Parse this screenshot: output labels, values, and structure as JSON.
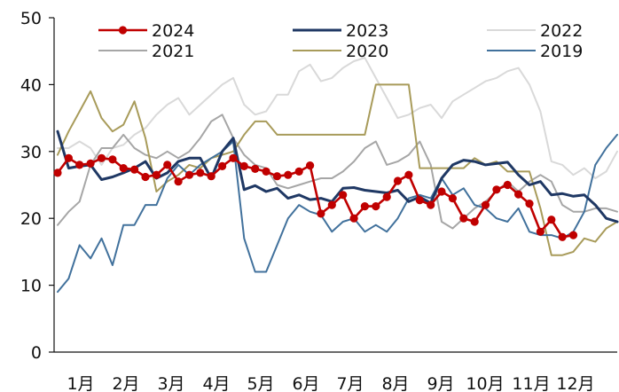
{
  "chart_data": {
    "type": "line",
    "title": "",
    "xlabel": "",
    "ylabel": "",
    "ylim": [
      0,
      50
    ],
    "yticks": [
      0,
      10,
      20,
      30,
      40,
      50
    ],
    "xlim": [
      0,
      51
    ],
    "x_tick_labels": [
      "1月",
      "2月",
      "3月",
      "4月",
      "5月",
      "6月",
      "7月",
      "8月",
      "9月",
      "10月",
      "11月",
      "12月"
    ],
    "grid": false,
    "legend_placement": "top, three columns",
    "series": [
      {
        "name": "2024",
        "color": "#C00000",
        "markers": true,
        "values": [
          26.8,
          29.0,
          28.0,
          28.2,
          29.0,
          28.8,
          27.5,
          27.3,
          26.2,
          26.5,
          28.0,
          25.5,
          26.5,
          26.8,
          26.3,
          27.8,
          29.0,
          27.8,
          27.4,
          27.0,
          26.3,
          26.5,
          27.0,
          27.9,
          20.7,
          22.0,
          23.5,
          20.0,
          21.8,
          21.8,
          23.2,
          25.6,
          26.5,
          22.7,
          22.0,
          24.0,
          23.0,
          20.0,
          19.5,
          22.0,
          24.3,
          25.0,
          23.6,
          22.2,
          18.0,
          19.8,
          17.2,
          17.5
        ],
        "points_x": [
          0,
          1,
          2,
          3,
          4,
          5,
          6,
          7,
          8,
          9,
          10,
          11,
          12,
          13,
          14,
          15,
          16,
          17,
          18,
          19,
          20,
          21,
          22,
          23,
          24,
          25,
          26,
          27,
          28,
          29,
          30,
          31,
          32,
          33,
          34,
          35,
          36,
          37,
          38,
          39,
          40,
          41,
          42,
          43,
          44,
          45,
          46,
          47
        ]
      },
      {
        "name": "2023",
        "color": "#1F3864",
        "markers": false,
        "values": [
          33.0,
          27.5,
          27.8,
          28.0,
          25.8,
          26.2,
          26.8,
          27.5,
          28.5,
          26.0,
          26.8,
          28.5,
          29.0,
          29.0,
          26.0,
          30.0,
          32.0,
          24.3,
          24.9,
          24.0,
          24.5,
          23.0,
          23.5,
          22.8,
          23.0,
          22.5,
          24.5,
          24.6,
          24.2,
          24.0,
          23.8,
          24.2,
          22.5,
          23.2,
          22.3,
          26.0,
          28.0,
          28.7,
          28.5,
          28.0,
          28.2,
          28.4,
          26.5,
          25.0,
          25.5,
          23.5,
          23.7,
          23.3,
          23.5,
          22.0,
          20.0,
          19.5
        ],
        "points_x": [
          0,
          1,
          2,
          3,
          4,
          5,
          6,
          7,
          8,
          9,
          10,
          11,
          12,
          13,
          14,
          15,
          16,
          17,
          18,
          19,
          20,
          21,
          22,
          23,
          24,
          25,
          26,
          27,
          28,
          29,
          30,
          31,
          32,
          33,
          34,
          35,
          36,
          37,
          38,
          39,
          40,
          41,
          42,
          43,
          44,
          45,
          46,
          47,
          48,
          49,
          50,
          51
        ]
      },
      {
        "name": "2022",
        "color": "#D9D9D9",
        "markers": false,
        "values": [
          30.5,
          30.5,
          31.5,
          30.5,
          28.0,
          30.5,
          31.0,
          32.5,
          33.5,
          35.5,
          37.0,
          38.0,
          35.5,
          37.0,
          38.5,
          40.0,
          41.0,
          37.0,
          35.5,
          36.0,
          38.5,
          38.5,
          42.0,
          43.0,
          40.5,
          41.0,
          42.5,
          43.5,
          44.0,
          41.0,
          38.0,
          35.0,
          35.5,
          36.5,
          37.0,
          35.0,
          37.5,
          38.5,
          39.5,
          40.5,
          41.0,
          42.0,
          42.5,
          40.0,
          36.0,
          28.5,
          28.0,
          26.5,
          27.5,
          26.0,
          27.0,
          30.0
        ],
        "points_x": [
          0,
          1,
          2,
          3,
          4,
          5,
          6,
          7,
          8,
          9,
          10,
          11,
          12,
          13,
          14,
          15,
          16,
          17,
          18,
          19,
          20,
          21,
          22,
          23,
          24,
          25,
          26,
          27,
          28,
          29,
          30,
          31,
          32,
          33,
          34,
          35,
          36,
          37,
          38,
          39,
          40,
          41,
          42,
          43,
          44,
          45,
          46,
          47,
          48,
          49,
          50,
          51
        ]
      },
      {
        "name": "2021",
        "color": "#A6A6A6",
        "markers": false,
        "values": [
          19.0,
          21.0,
          22.5,
          28.0,
          30.5,
          30.5,
          32.5,
          30.5,
          29.5,
          29.0,
          30.0,
          29.0,
          30.0,
          32.0,
          34.5,
          35.5,
          32.0,
          29.5,
          28.0,
          27.5,
          25.0,
          24.5,
          25.0,
          25.5,
          26.0,
          26.0,
          27.0,
          28.5,
          30.5,
          31.5,
          28.0,
          28.5,
          29.5,
          31.5,
          28.0,
          19.5,
          18.5,
          20.0,
          21.5,
          22.5,
          24.0,
          25.5,
          24.0,
          25.5,
          26.5,
          25.5,
          22.0,
          21.0,
          21.0,
          21.5,
          21.5,
          21.0
        ],
        "points_x": [
          0,
          1,
          2,
          3,
          4,
          5,
          6,
          7,
          8,
          9,
          10,
          11,
          12,
          13,
          14,
          15,
          16,
          17,
          18,
          19,
          20,
          21,
          22,
          23,
          24,
          25,
          26,
          27,
          28,
          29,
          30,
          31,
          32,
          33,
          34,
          35,
          36,
          37,
          38,
          39,
          40,
          41,
          42,
          43,
          44,
          45,
          46,
          47,
          48,
          49,
          50,
          51
        ]
      },
      {
        "name": "2020",
        "color": "#A89B5A",
        "markers": false,
        "values": [
          29.5,
          33.0,
          36.0,
          39.0,
          35.0,
          33.0,
          34.0,
          37.5,
          32.0,
          24.0,
          25.5,
          26.5,
          28.0,
          27.5,
          29.0,
          29.5,
          30.0,
          32.5,
          34.5,
          34.5,
          32.5,
          32.5,
          32.5,
          32.5,
          32.5,
          32.5,
          32.5,
          32.5,
          32.5,
          40.0,
          40.0,
          40.0,
          40.0,
          27.5,
          27.5,
          27.5,
          27.5,
          27.5,
          29.0,
          28.0,
          28.5,
          27.0,
          27.0,
          27.0,
          21.5,
          14.5,
          14.5,
          15.0,
          17.0,
          16.5,
          18.5,
          19.5
        ],
        "points_x": [
          0,
          1,
          2,
          3,
          4,
          5,
          6,
          7,
          8,
          9,
          10,
          11,
          12,
          13,
          14,
          15,
          16,
          17,
          18,
          19,
          20,
          21,
          22,
          23,
          24,
          25,
          26,
          27,
          28,
          29,
          30,
          31,
          32,
          33,
          34,
          35,
          36,
          37,
          38,
          39,
          40,
          41,
          42,
          43,
          44,
          45,
          46,
          47,
          48,
          49,
          50,
          51
        ]
      },
      {
        "name": "2019",
        "color": "#41719C",
        "markers": false,
        "values": [
          9.0,
          11.0,
          16.0,
          14.0,
          17.0,
          13.0,
          19.0,
          19.0,
          22.0,
          22.0,
          26.0,
          28.0,
          26.5,
          28.0,
          29.0,
          30.0,
          31.5,
          17.0,
          12.0,
          12.0,
          16.0,
          20.0,
          22.0,
          21.0,
          20.5,
          18.0,
          19.5,
          20.0,
          18.0,
          19.0,
          18.0,
          20.0,
          23.0,
          23.5,
          23.0,
          26.0,
          23.5,
          24.5,
          22.0,
          21.5,
          20.0,
          19.5,
          21.5,
          18.0,
          17.5,
          17.5,
          17.0,
          18.0,
          21.0,
          28.0,
          30.5,
          32.5
        ],
        "points_x": [
          0,
          1,
          2,
          3,
          4,
          5,
          6,
          7,
          8,
          9,
          10,
          11,
          12,
          13,
          14,
          15,
          16,
          17,
          18,
          19,
          20,
          21,
          22,
          23,
          24,
          25,
          26,
          27,
          28,
          29,
          30,
          31,
          32,
          33,
          34,
          35,
          36,
          37,
          38,
          39,
          40,
          41,
          42,
          43,
          44,
          45,
          46,
          47,
          48,
          49,
          50,
          51
        ]
      }
    ]
  }
}
